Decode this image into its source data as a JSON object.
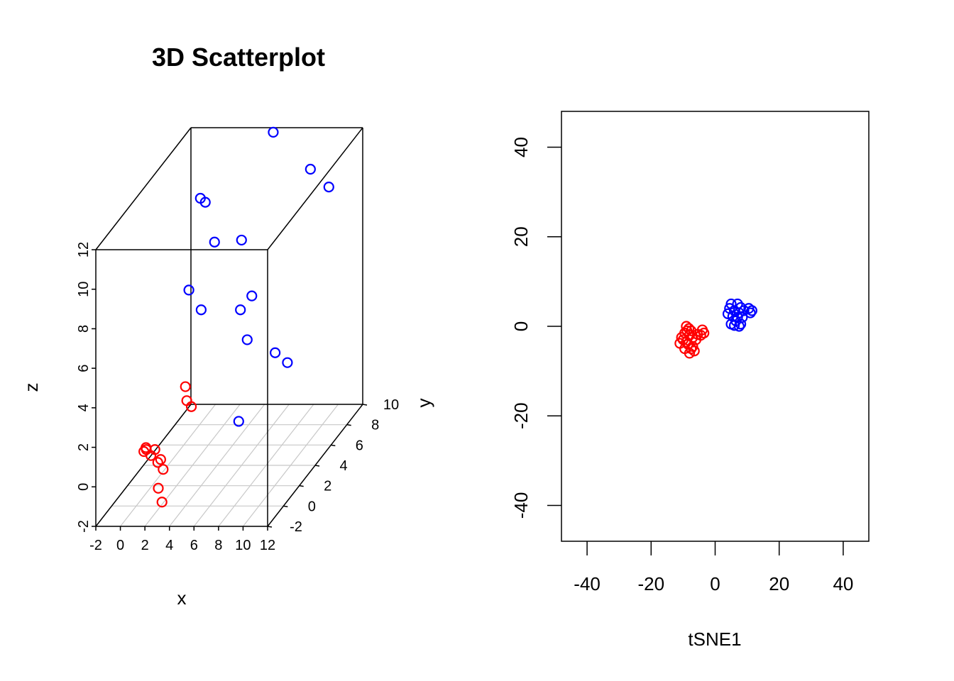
{
  "chart_data": [
    {
      "type": "scatter3d",
      "title": "3D Scatterplot",
      "xlabel": "x",
      "ylabel": "y",
      "zlabel": "z",
      "xlim": [
        -2,
        12
      ],
      "ylim": [
        -2,
        10
      ],
      "zlim": [
        -2,
        12
      ],
      "x_ticks": [
        "-2",
        "0",
        "2",
        "4",
        "6",
        "8",
        "10",
        "12"
      ],
      "y_ticks": [
        "-2",
        "0",
        "2",
        "4",
        "6",
        "8",
        "10"
      ],
      "z_ticks": [
        "-2",
        "0",
        "2",
        "4",
        "6",
        "8",
        "10",
        "12"
      ],
      "grid": "x-y plane at z = -2",
      "series": [
        {
          "color": "#ff0000",
          "points": [
            [
              0.3,
              0.5,
              0.5
            ],
            [
              0.5,
              0.5,
              0.6
            ],
            [
              0.6,
              0.3,
              0.8
            ],
            [
              1.0,
              0.3,
              0.4
            ],
            [
              1.2,
              0.5,
              0.6
            ],
            [
              1.5,
              0.4,
              0.0
            ],
            [
              1.8,
              0.3,
              0.2
            ],
            [
              2.0,
              0.3,
              -0.3
            ],
            [
              1.8,
              0.0,
              -1.1
            ],
            [
              2.1,
              0.0,
              -1.8
            ],
            [
              2.2,
              2.8,
              2.6
            ],
            [
              2.7,
              2.2,
              2.2
            ],
            [
              3.2,
              2.0,
              2.0
            ]
          ]
        },
        {
          "color": "#0000ff",
          "points": [
            [
              3.0,
              2.0,
              7.9
            ],
            [
              4.0,
              2.0,
              6.9
            ],
            [
              2.0,
              5.0,
              11.0
            ],
            [
              2.4,
              5.0,
              10.8
            ],
            [
              3.8,
              4.0,
              9.3
            ],
            [
              6.0,
              4.0,
              9.4
            ],
            [
              7.2,
              2.0,
              6.9
            ],
            [
              8.0,
              2.2,
              7.5
            ],
            [
              8.4,
              1.0,
              5.9
            ],
            [
              11.0,
              0.5,
              5.5
            ],
            [
              12.0,
              0.5,
              5.0
            ],
            [
              9.0,
              -1.0,
              2.8
            ],
            [
              6.0,
              8.0,
              12.8
            ],
            [
              10.0,
              6.5,
              11.7
            ],
            [
              11.5,
              6.5,
              10.8
            ]
          ]
        }
      ]
    },
    {
      "type": "scatter",
      "xlabel": "tSNE1",
      "ylabel": "",
      "xlim": [
        -48,
        48
      ],
      "ylim": [
        -48,
        48
      ],
      "x_ticks": [
        "-40",
        "-20",
        "0",
        "20",
        "40"
      ],
      "y_ticks": [
        "-40",
        "-20",
        "0",
        "20",
        "40"
      ],
      "series": [
        {
          "color": "#ff0000",
          "points": [
            [
              -9.0,
              0.0
            ],
            [
              -8.2,
              -0.5
            ],
            [
              -7.5,
              -1.0
            ],
            [
              -9.5,
              -1.5
            ],
            [
              -8.0,
              -2.0
            ],
            [
              -7.0,
              -2.5
            ],
            [
              -10.0,
              -3.0
            ],
            [
              -9.0,
              -3.5
            ],
            [
              -11.0,
              -3.8
            ],
            [
              -8.5,
              -4.0
            ],
            [
              -7.0,
              -4.5
            ],
            [
              -9.5,
              -5.0
            ],
            [
              -6.5,
              -5.5
            ],
            [
              -8.0,
              -6.0
            ],
            [
              -4.0,
              -0.8
            ],
            [
              -3.5,
              -1.5
            ],
            [
              -4.5,
              -2.0
            ],
            [
              -6.0,
              -3.0
            ],
            [
              -10.5,
              -2.5
            ],
            [
              -7.5,
              -5.0
            ],
            [
              -5.5,
              -1.8
            ],
            [
              -8.8,
              -1.0
            ]
          ]
        },
        {
          "color": "#0000ff",
          "points": [
            [
              5.0,
              5.0
            ],
            [
              7.0,
              5.0
            ],
            [
              8.0,
              4.2
            ],
            [
              4.5,
              4.0
            ],
            [
              6.0,
              3.5
            ],
            [
              7.5,
              3.0
            ],
            [
              4.0,
              2.8
            ],
            [
              5.5,
              2.2
            ],
            [
              7.0,
              2.0
            ],
            [
              8.5,
              2.0
            ],
            [
              10.5,
              4.0
            ],
            [
              11.5,
              3.5
            ],
            [
              11.0,
              3.0
            ],
            [
              5.0,
              0.5
            ],
            [
              6.0,
              0.2
            ],
            [
              7.5,
              0.0
            ],
            [
              8.0,
              0.5
            ],
            [
              6.5,
              1.2
            ],
            [
              9.0,
              3.5
            ]
          ]
        }
      ]
    }
  ]
}
